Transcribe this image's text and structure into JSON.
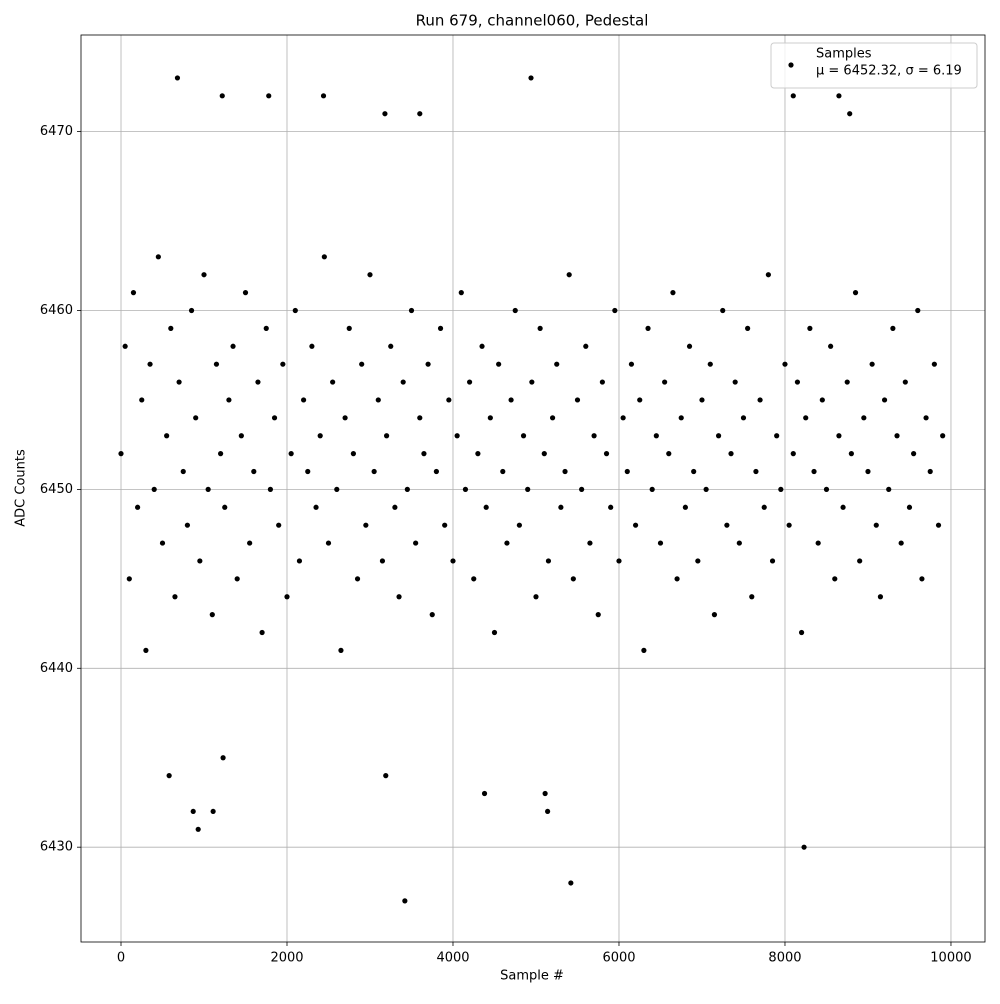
{
  "chart_data": {
    "type": "scatter",
    "title": "Run 679, channel060, Pedestal",
    "x_label": "Sample #",
    "y_label": "ADC Counts",
    "xlim": [
      -482,
      10410
    ],
    "ylim": [
      6424.7,
      6475.4
    ],
    "xticks": [
      0,
      2000,
      4000,
      6000,
      8000,
      10000
    ],
    "yticks": [
      6430,
      6440,
      6450,
      6460,
      6470
    ],
    "grid": true,
    "legend": "upper right",
    "legend_stats": "μ = 6452.32, σ = 6.19",
    "series": [
      {
        "name": "Samples",
        "color": "#000000",
        "x": [
          0,
          50,
          100,
          150,
          200,
          250,
          300,
          350,
          400,
          450,
          500,
          550,
          600,
          650,
          700,
          750,
          800,
          850,
          900,
          950,
          1000,
          1050,
          1100,
          1150,
          1200,
          1250,
          1300,
          1350,
          1400,
          1450,
          1500,
          1550,
          1600,
          1650,
          1700,
          1750,
          1800,
          1850,
          1900,
          1950,
          2000,
          2050,
          2100,
          2150,
          2200,
          2250,
          2300,
          2350,
          2400,
          2450,
          2500,
          2550,
          2600,
          2650,
          2700,
          2750,
          2800,
          2850,
          2900,
          2950,
          3000,
          3050,
          3100,
          3150,
          3200,
          3250,
          3300,
          3350,
          3400,
          3450,
          3500,
          3550,
          3600,
          3650,
          3700,
          3750,
          3800,
          3850,
          3900,
          3950,
          4000,
          4050,
          4100,
          4150,
          4200,
          4250,
          4300,
          4350,
          4400,
          4450,
          4500,
          4550,
          4600,
          4650,
          4700,
          4750,
          4800,
          4850,
          4900,
          4950,
          5000,
          5050,
          5100,
          5150,
          5200,
          5250,
          5300,
          5350,
          5400,
          5450,
          5500,
          5550,
          5600,
          5650,
          5700,
          5750,
          5800,
          5850,
          5900,
          5950,
          6000,
          6050,
          6100,
          6150,
          6200,
          6250,
          6300,
          6350,
          6400,
          6450,
          6500,
          6550,
          6600,
          6650,
          6700,
          6750,
          6800,
          6850,
          6900,
          6950,
          7000,
          7050,
          7100,
          7150,
          7200,
          7250,
          7300,
          7350,
          7400,
          7450,
          7500,
          7550,
          7600,
          7650,
          7700,
          7750,
          7800,
          7850,
          7900,
          7950,
          8000,
          8050,
          8100,
          8150,
          8200,
          8250,
          8300,
          8350,
          8400,
          8450,
          8500,
          8550,
          8600,
          8650,
          8700,
          8750,
          8800,
          8850,
          8900,
          8950,
          9000,
          9050,
          9100,
          9150,
          9200,
          9250,
          9300,
          9350,
          9400,
          9450,
          9500,
          9550,
          9600,
          9650,
          9700,
          9750,
          9800,
          9850,
          9900,
          680,
          4940,
          1220,
          1780,
          2440,
          8100,
          8650,
          3180,
          3600,
          8780,
          3420,
          5420,
          8230,
          930,
          870,
          1110,
          5140,
          4380,
          5110,
          1230,
          580,
          3190
        ],
        "values": [
          6452,
          6458,
          6445,
          6461,
          6449,
          6455,
          6441,
          6457,
          6450,
          6463,
          6447,
          6453,
          6459,
          6444,
          6456,
          6451,
          6448,
          6460,
          6454,
          6446,
          6462,
          6450,
          6443,
          6457,
          6452,
          6449,
          6455,
          6458,
          6445,
          6453,
          6461,
          6447,
          6451,
          6456,
          6442,
          6459,
          6450,
          6454,
          6448,
          6457,
          6444,
          6452,
          6460,
          6446,
          6455,
          6451,
          6458,
          6449,
          6453,
          6463,
          6447,
          6456,
          6450,
          6441,
          6454,
          6459,
          6452,
          6445,
          6457,
          6448,
          6462,
          6451,
          6455,
          6446,
          6453,
          6458,
          6449,
          6444,
          6456,
          6450,
          6460,
          6447,
          6454,
          6452,
          6457,
          6443,
          6451,
          6459,
          6448,
          6455,
          6446,
          6453,
          6461,
          6450,
          6456,
          6445,
          6452,
          6458,
          6449,
          6454,
          6442,
          6457,
          6451,
          6447,
          6455,
          6460,
          6448,
          6453,
          6450,
          6456,
          6444,
          6459,
          6452,
          6446,
          6454,
          6457,
          6449,
          6451,
          6462,
          6445,
          6455,
          6450,
          6458,
          6447,
          6453,
          6443,
          6456,
          6452,
          6449,
          6460,
          6446,
          6454,
          6451,
          6457,
          6448,
          6455,
          6441,
          6459,
          6450,
          6453,
          6447,
          6456,
          6452,
          6461,
          6445,
          6454,
          6449,
          6458,
          6451,
          6446,
          6455,
          6450,
          6457,
          6443,
          6453,
          6460,
          6448,
          6452,
          6456,
          6447,
          6454,
          6459,
          6444,
          6451,
          6455,
          6449,
          6462,
          6446,
          6453,
          6450,
          6457,
          6448,
          6452,
          6456,
          6442,
          6454,
          6459,
          6451,
          6447,
          6455,
          6450,
          6458,
          6445,
          6453,
          6449,
          6456,
          6452,
          6461,
          6446,
          6454,
          6451,
          6457,
          6448,
          6444,
          6455,
          6450,
          6459,
          6453,
          6447,
          6456,
          6449,
          6452,
          6460,
          6445,
          6454,
          6451,
          6457,
          6448,
          6453,
          6473,
          6473,
          6472,
          6472,
          6472,
          6472,
          6472,
          6471,
          6471,
          6471,
          6427,
          6428,
          6430,
          6431,
          6432,
          6432,
          6432,
          6433,
          6433,
          6435,
          6434,
          6434
        ]
      }
    ]
  }
}
